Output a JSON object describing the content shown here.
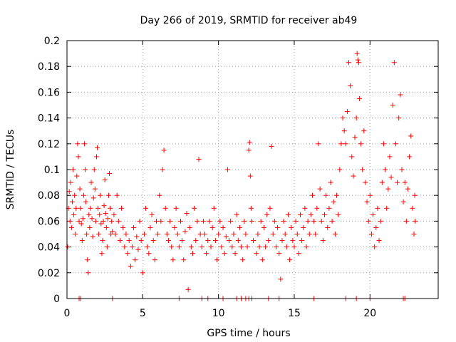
{
  "chart_data": {
    "type": "scatter",
    "title": "Day 266 of 2019, SRMTID for receiver ab49",
    "xlabel": "GPS time / hours",
    "ylabel": "SRMTID / TECUs",
    "xlim": [
      0,
      24.5
    ],
    "ylim": [
      0,
      0.2
    ],
    "xticks": [
      0,
      5,
      10,
      15,
      20
    ],
    "xtick_labels": [
      "0",
      "5",
      "10",
      "15",
      "20"
    ],
    "yticks": [
      0,
      0.02,
      0.04,
      0.06,
      0.08,
      0.1,
      0.12,
      0.14,
      0.16,
      0.18,
      0.2
    ],
    "ytick_labels": [
      "0",
      "0.02",
      "0.04",
      "0.06",
      "0.08",
      "0.1",
      "0.12",
      "0.14",
      "0.16",
      "0.18",
      "0.2"
    ],
    "grid": true,
    "marker": "+",
    "series_color": "#ff0000",
    "series": [
      {
        "name": "SRMTID",
        "points": [
          [
            0.05,
            0.04
          ],
          [
            0.1,
            0.07
          ],
          [
            0.15,
            0.083
          ],
          [
            0.2,
            0.06
          ],
          [
            0.25,
            0.09
          ],
          [
            0.3,
            0.055
          ],
          [
            0.35,
            0.075
          ],
          [
            0.4,
            0.1
          ],
          [
            0.45,
            0.065
          ],
          [
            0.5,
            0.08
          ],
          [
            0.55,
            0.05
          ],
          [
            0.6,
            0.07
          ],
          [
            0.65,
            0.095
          ],
          [
            0.7,
            0.12
          ],
          [
            0.75,
            0.11
          ],
          [
            0.8,
            0.06
          ],
          [
            0.85,
            0.085
          ],
          [
            0.9,
            0.07
          ],
          [
            0.95,
            0.058
          ],
          [
            1.0,
            0.045
          ],
          [
            1.05,
            0.062
          ],
          [
            1.1,
            0.08
          ],
          [
            1.15,
            0.12
          ],
          [
            1.2,
            0.1
          ],
          [
            1.25,
            0.075
          ],
          [
            1.3,
            0.05
          ],
          [
            1.35,
            0.03
          ],
          [
            1.4,
            0.02
          ],
          [
            1.45,
            0.065
          ],
          [
            1.5,
            0.055
          ],
          [
            1.55,
            0.07
          ],
          [
            1.6,
            0.09
          ],
          [
            1.65,
            0.062
          ],
          [
            1.7,
            0.048
          ],
          [
            1.75,
            0.078
          ],
          [
            1.8,
            0.1
          ],
          [
            1.85,
            0.085
          ],
          [
            1.9,
            0.06
          ],
          [
            1.95,
            0.11
          ],
          [
            2.0,
            0.117
          ],
          [
            2.05,
            0.07
          ],
          [
            2.1,
            0.05
          ],
          [
            2.15,
            0.065
          ],
          [
            2.2,
            0.08
          ],
          [
            2.25,
            0.058
          ],
          [
            2.3,
            0.035
          ],
          [
            2.35,
            0.045
          ],
          [
            2.4,
            0.06
          ],
          [
            2.45,
            0.072
          ],
          [
            2.5,
            0.092
          ],
          [
            2.55,
            0.066
          ],
          [
            2.6,
            0.055
          ],
          [
            2.65,
            0.04
          ],
          [
            2.7,
            0.062
          ],
          [
            2.75,
            0.08
          ],
          [
            2.8,
            0.097
          ],
          [
            2.85,
            0.07
          ],
          [
            2.9,
            0.05
          ],
          [
            2.95,
            0.06
          ],
          [
            3.0,
            0.052
          ],
          [
            3.1,
            0.065
          ],
          [
            3.2,
            0.05
          ],
          [
            3.3,
            0.08
          ],
          [
            3.4,
            0.06
          ],
          [
            3.5,
            0.045
          ],
          [
            3.6,
            0.07
          ],
          [
            3.7,
            0.055
          ],
          [
            3.8,
            0.04
          ],
          [
            3.9,
            0.05
          ],
          [
            4.0,
            0.035
          ],
          [
            4.1,
            0.045
          ],
          [
            4.2,
            0.025
          ],
          [
            4.3,
            0.04
          ],
          [
            4.4,
            0.055
          ],
          [
            4.5,
            0.03
          ],
          [
            4.6,
            0.048
          ],
          [
            4.7,
            0.038
          ],
          [
            4.8,
            0.06
          ],
          [
            4.9,
            0.045
          ],
          [
            5.0,
            0.02
          ],
          [
            5.1,
            0.05
          ],
          [
            5.2,
            0.07
          ],
          [
            5.3,
            0.04
          ],
          [
            5.4,
            0.035
          ],
          [
            5.5,
            0.055
          ],
          [
            5.6,
            0.065
          ],
          [
            5.7,
            0.045
          ],
          [
            5.8,
            0.03
          ],
          [
            5.9,
            0.06
          ],
          [
            6.0,
            0.05
          ],
          [
            6.1,
            0.08
          ],
          [
            6.2,
            0.06
          ],
          [
            6.3,
            0.1
          ],
          [
            6.4,
            0.115
          ],
          [
            6.5,
            0.07
          ],
          [
            6.6,
            0.05
          ],
          [
            6.7,
            0.045
          ],
          [
            6.8,
            0.06
          ],
          [
            6.9,
            0.04
          ],
          [
            7.0,
            0.03
          ],
          [
            7.1,
            0.055
          ],
          [
            7.2,
            0.07
          ],
          [
            7.3,
            0.05
          ],
          [
            7.4,
            0.04
          ],
          [
            7.5,
            0.06
          ],
          [
            7.6,
            0.045
          ],
          [
            7.7,
            0.03
          ],
          [
            7.8,
            0.052
          ],
          [
            7.9,
            0.066
          ],
          [
            8.0,
            0.007
          ],
          [
            8.1,
            0.055
          ],
          [
            8.2,
            0.04
          ],
          [
            8.3,
            0.035
          ],
          [
            8.4,
            0.07
          ],
          [
            8.5,
            0.045
          ],
          [
            8.6,
            0.06
          ],
          [
            8.7,
            0.108
          ],
          [
            8.8,
            0.05
          ],
          [
            8.9,
            0.04
          ],
          [
            9.0,
            0.06
          ],
          [
            9.1,
            0.05
          ],
          [
            9.2,
            0.035
          ],
          [
            9.3,
            0.045
          ],
          [
            9.4,
            0.06
          ],
          [
            9.5,
            0.04
          ],
          [
            9.6,
            0.055
          ],
          [
            9.7,
            0.07
          ],
          [
            9.8,
            0.045
          ],
          [
            9.9,
            0.03
          ],
          [
            10.0,
            0.05
          ],
          [
            10.1,
            0.06
          ],
          [
            10.2,
            0.04
          ],
          [
            10.3,
            0.055
          ],
          [
            10.4,
            0.035
          ],
          [
            10.5,
            0.048
          ],
          [
            10.6,
            0.1
          ],
          [
            10.7,
            0.045
          ],
          [
            10.8,
            0.06
          ],
          [
            10.9,
            0.04
          ],
          [
            11.0,
            0.05
          ],
          [
            11.1,
            0.035
          ],
          [
            11.2,
            0.065
          ],
          [
            11.3,
            0.045
          ],
          [
            11.4,
            0.055
          ],
          [
            11.5,
            0.04
          ],
          [
            11.6,
            0.03
          ],
          [
            11.7,
            0.06
          ],
          [
            11.8,
            0.05
          ],
          [
            11.9,
            0.04
          ],
          [
            12.0,
            0.115
          ],
          [
            12.05,
            0.121
          ],
          [
            12.1,
            0.095
          ],
          [
            12.15,
            0.07
          ],
          [
            12.2,
            0.06
          ],
          [
            12.3,
            0.045
          ],
          [
            12.5,
            0.035
          ],
          [
            12.6,
            0.05
          ],
          [
            12.7,
            0.04
          ],
          [
            12.8,
            0.06
          ],
          [
            12.9,
            0.03
          ],
          [
            13.0,
            0.055
          ],
          [
            13.1,
            0.04
          ],
          [
            13.2,
            0.065
          ],
          [
            13.3,
            0.045
          ],
          [
            13.4,
            0.07
          ],
          [
            13.5,
            0.118
          ],
          [
            13.6,
            0.05
          ],
          [
            13.7,
            0.06
          ],
          [
            13.8,
            0.04
          ],
          [
            13.9,
            0.055
          ],
          [
            14.0,
            0.035
          ],
          [
            14.1,
            0.015
          ],
          [
            14.2,
            0.045
          ],
          [
            14.3,
            0.06
          ],
          [
            14.4,
            0.05
          ],
          [
            14.5,
            0.04
          ],
          [
            14.6,
            0.065
          ],
          [
            14.7,
            0.03
          ],
          [
            14.8,
            0.055
          ],
          [
            14.9,
            0.045
          ],
          [
            15.0,
            0.04
          ],
          [
            15.1,
            0.06
          ],
          [
            15.2,
            0.05
          ],
          [
            15.3,
            0.035
          ],
          [
            15.4,
            0.065
          ],
          [
            15.5,
            0.045
          ],
          [
            15.6,
            0.055
          ],
          [
            15.7,
            0.07
          ],
          [
            15.8,
            0.04
          ],
          [
            15.9,
            0.06
          ],
          [
            16.0,
            0.05
          ],
          [
            16.1,
            0.065
          ],
          [
            16.2,
            0.08
          ],
          [
            16.3,
            0.06
          ],
          [
            16.4,
            0.05
          ],
          [
            16.5,
            0.07
          ],
          [
            16.6,
            0.12
          ],
          [
            16.7,
            0.085
          ],
          [
            16.8,
            0.06
          ],
          [
            16.9,
            0.045
          ],
          [
            17.0,
            0.065
          ],
          [
            17.1,
            0.08
          ],
          [
            17.2,
            0.055
          ],
          [
            17.3,
            0.07
          ],
          [
            17.4,
            0.09
          ],
          [
            17.5,
            0.06
          ],
          [
            17.6,
            0.075
          ],
          [
            17.7,
            0.05
          ],
          [
            17.8,
            0.08
          ],
          [
            17.9,
            0.065
          ],
          [
            18.0,
            0.1
          ],
          [
            18.1,
            0.12
          ],
          [
            18.2,
            0.14
          ],
          [
            18.3,
            0.13
          ],
          [
            18.4,
            0.12
          ],
          [
            18.5,
            0.145
          ],
          [
            18.6,
            0.183
          ],
          [
            18.7,
            0.165
          ],
          [
            18.8,
            0.11
          ],
          [
            18.9,
            0.095
          ],
          [
            19.0,
            0.125
          ],
          [
            19.1,
            0.14
          ],
          [
            19.15,
            0.19
          ],
          [
            19.2,
            0.185
          ],
          [
            19.25,
            0.183
          ],
          [
            19.3,
            0.155
          ],
          [
            19.4,
            0.12
          ],
          [
            19.5,
            0.1
          ],
          [
            19.6,
            0.13
          ],
          [
            19.7,
            0.09
          ],
          [
            19.8,
            0.075
          ],
          [
            19.9,
            0.06
          ],
          [
            20.0,
            0.08
          ],
          [
            20.1,
            0.05
          ],
          [
            20.2,
            0.065
          ],
          [
            20.3,
            0.04
          ],
          [
            20.4,
            0.055
          ],
          [
            20.5,
            0.07
          ],
          [
            20.6,
            0.045
          ],
          [
            20.7,
            0.06
          ],
          [
            20.8,
            0.09
          ],
          [
            20.9,
            0.12
          ],
          [
            21.0,
            0.1
          ],
          [
            21.1,
            0.07
          ],
          [
            21.2,
            0.085
          ],
          [
            21.3,
            0.11
          ],
          [
            21.4,
            0.094
          ],
          [
            21.5,
            0.15
          ],
          [
            21.6,
            0.183
          ],
          [
            21.7,
            0.12
          ],
          [
            21.8,
            0.09
          ],
          [
            21.9,
            0.14
          ],
          [
            22.0,
            0.158
          ],
          [
            22.1,
            0.1
          ],
          [
            22.2,
            0.075
          ],
          [
            22.3,
            0.09
          ],
          [
            22.4,
            0.06
          ],
          [
            22.5,
            0.085
          ],
          [
            22.6,
            0.11
          ],
          [
            22.7,
            0.126
          ],
          [
            22.8,
            0.07
          ],
          [
            22.9,
            0.05
          ],
          [
            22.95,
            0.08
          ],
          [
            22.98,
            0.06
          ]
        ]
      }
    ],
    "zero_markers_x": [
      0.8,
      0.9,
      3.0,
      7.4,
      8.9,
      9.3,
      10.3,
      11.2,
      11.5,
      11.8,
      12.0,
      12.2,
      13.3,
      14.0,
      16.3,
      18.4,
      19.1,
      20.0,
      22.2,
      22.3
    ]
  }
}
